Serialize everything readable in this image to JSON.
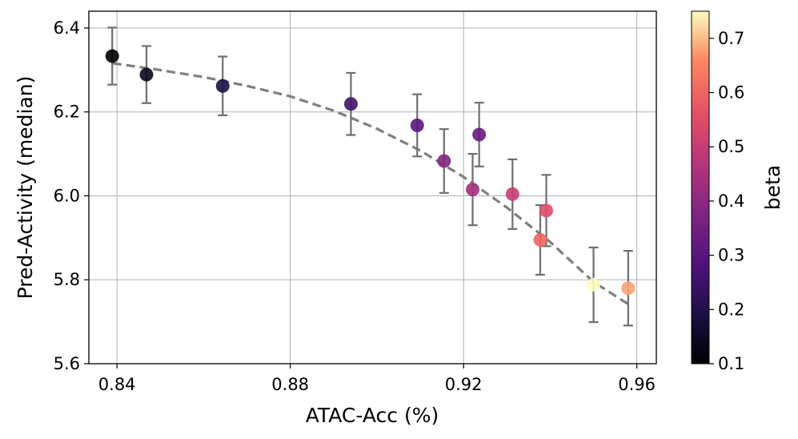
{
  "chart_data": {
    "type": "scatter",
    "title": "",
    "xlabel": "ATAC-Acc (%)",
    "ylabel": "Pred-Activity (median)",
    "xlim": [
      0.8335,
      0.9645
    ],
    "ylim": [
      5.6,
      6.44
    ],
    "xticks": [
      {
        "value": 0.84,
        "label": "0.84"
      },
      {
        "value": 0.88,
        "label": "0.88"
      },
      {
        "value": 0.92,
        "label": "0.92"
      },
      {
        "value": 0.96,
        "label": "0.96"
      }
    ],
    "yticks": [
      {
        "value": 5.6,
        "label": "5.6"
      },
      {
        "value": 5.8,
        "label": "5.8"
      },
      {
        "value": 6.0,
        "label": "6.0"
      },
      {
        "value": 6.2,
        "label": "6.2"
      },
      {
        "value": 6.4,
        "label": "6.4"
      }
    ],
    "grid": true,
    "points": [
      {
        "x": 0.8389,
        "y": 6.333,
        "err": 0.068,
        "beta": 0.1
      },
      {
        "x": 0.8468,
        "y": 6.289,
        "err": 0.068,
        "beta": 0.14
      },
      {
        "x": 0.8644,
        "y": 6.262,
        "err": 0.07,
        "beta": 0.19
      },
      {
        "x": 0.894,
        "y": 6.219,
        "err": 0.074,
        "beta": 0.26
      },
      {
        "x": 0.9093,
        "y": 6.168,
        "err": 0.074,
        "beta": 0.3
      },
      {
        "x": 0.9155,
        "y": 6.083,
        "err": 0.076,
        "beta": 0.38
      },
      {
        "x": 0.9221,
        "y": 6.015,
        "err": 0.085,
        "beta": 0.44
      },
      {
        "x": 0.9236,
        "y": 6.146,
        "err": 0.076,
        "beta": 0.33
      },
      {
        "x": 0.9313,
        "y": 6.004,
        "err": 0.083,
        "beta": 0.5
      },
      {
        "x": 0.9377,
        "y": 5.895,
        "err": 0.083,
        "beta": 0.6
      },
      {
        "x": 0.9391,
        "y": 5.965,
        "err": 0.085,
        "beta": 0.55
      },
      {
        "x": 0.95,
        "y": 5.788,
        "err": 0.089,
        "beta": 0.75
      },
      {
        "x": 0.958,
        "y": 5.78,
        "err": 0.089,
        "beta": 0.68
      }
    ],
    "fit_line": {
      "style": "dashed",
      "color": "#7f7f7f",
      "points": [
        [
          0.839,
          6.316
        ],
        [
          0.848,
          6.303
        ],
        [
          0.86,
          6.283
        ],
        [
          0.87,
          6.262
        ],
        [
          0.88,
          6.237
        ],
        [
          0.89,
          6.203
        ],
        [
          0.9,
          6.16
        ],
        [
          0.91,
          6.108
        ],
        [
          0.92,
          6.045
        ],
        [
          0.93,
          5.972
        ],
        [
          0.94,
          5.89
        ],
        [
          0.95,
          5.795
        ],
        [
          0.958,
          5.742
        ]
      ]
    },
    "colorbar": {
      "label": "beta",
      "colormap": "magma",
      "range": [
        0.1,
        0.75
      ],
      "ticks": [
        {
          "value": 0.1,
          "label": "0.1"
        },
        {
          "value": 0.2,
          "label": "0.2"
        },
        {
          "value": 0.3,
          "label": "0.3"
        },
        {
          "value": 0.4,
          "label": "0.4"
        },
        {
          "value": 0.5,
          "label": "0.5"
        },
        {
          "value": 0.6,
          "label": "0.6"
        },
        {
          "value": 0.7,
          "label": "0.7"
        }
      ]
    }
  }
}
